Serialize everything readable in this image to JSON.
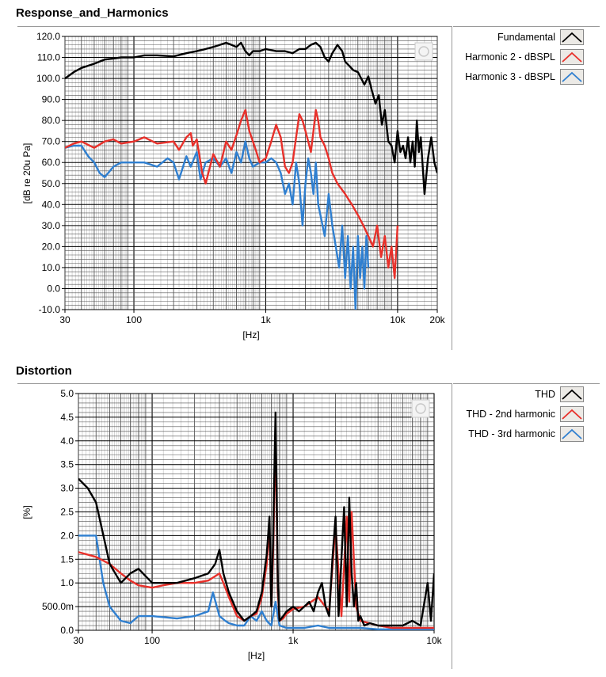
{
  "chart_data": [
    {
      "type": "line",
      "title": "Response_and_Harmonics",
      "xlabel": "[Hz]",
      "ylabel": "[dB re 20u Pa]",
      "xscale": "log",
      "xlim": [
        30,
        20000
      ],
      "ylim": [
        -10,
        120
      ],
      "xticks": [
        {
          "v": 30,
          "label": "30"
        },
        {
          "v": 100,
          "label": "100"
        },
        {
          "v": 1000,
          "label": "1k"
        },
        {
          "v": 10000,
          "label": "10k"
        },
        {
          "v": 20000,
          "label": "20k"
        }
      ],
      "yticks": [
        {
          "v": 120,
          "label": "120.0"
        },
        {
          "v": 110,
          "label": "110.0"
        },
        {
          "v": 100,
          "label": "100.0"
        },
        {
          "v": 90,
          "label": "90.0"
        },
        {
          "v": 80,
          "label": "80.0"
        },
        {
          "v": 70,
          "label": "70.0"
        },
        {
          "v": 60,
          "label": "60.0"
        },
        {
          "v": 50,
          "label": "50.0"
        },
        {
          "v": 40,
          "label": "40.0"
        },
        {
          "v": 30,
          "label": "30.0"
        },
        {
          "v": 20,
          "label": "20.0"
        },
        {
          "v": 10,
          "label": "10.0"
        },
        {
          "v": 0,
          "label": "0.0"
        },
        {
          "v": -10,
          "label": "-10.0"
        }
      ],
      "grid": true,
      "legend_position": "right",
      "series": [
        {
          "name": "Fundamental",
          "color": "#000000",
          "x": [
            30,
            35,
            40,
            50,
            60,
            70,
            80,
            100,
            120,
            150,
            200,
            250,
            300,
            350,
            400,
            450,
            500,
            550,
            600,
            650,
            700,
            750,
            800,
            900,
            1000,
            1200,
            1400,
            1600,
            1800,
            2000,
            2200,
            2400,
            2600,
            2800,
            3000,
            3200,
            3500,
            3800,
            4000,
            4300,
            4600,
            5000,
            5300,
            5600,
            6000,
            6400,
            6800,
            7200,
            7600,
            8000,
            8500,
            9000,
            9500,
            10000,
            10500,
            11000,
            11500,
            12000,
            12500,
            13000,
            13500,
            14000,
            14500,
            15000,
            16000,
            17000,
            18000,
            19000,
            20000
          ],
          "y": [
            100,
            103,
            105,
            107,
            109,
            109.5,
            110,
            110,
            111,
            111,
            110.5,
            112,
            113,
            114,
            115,
            116,
            117,
            116,
            115,
            117,
            113,
            111,
            113,
            113,
            114,
            113,
            113,
            112,
            114,
            114,
            116,
            117,
            115,
            110,
            108,
            112,
            116,
            113,
            108,
            106,
            104,
            103,
            100,
            97,
            101,
            94,
            88,
            92,
            78,
            85,
            70,
            68,
            60,
            75,
            65,
            68,
            62,
            72,
            60,
            70,
            58,
            80,
            65,
            72,
            45,
            62,
            72,
            60,
            55
          ]
        },
        {
          "name": "Harmonic 2 - dBSPL",
          "color": "#e8302a",
          "x": [
            30,
            35,
            40,
            50,
            60,
            70,
            80,
            100,
            120,
            150,
            200,
            220,
            250,
            270,
            280,
            300,
            330,
            350,
            400,
            450,
            500,
            550,
            600,
            650,
            700,
            750,
            800,
            850,
            900,
            1000,
            1100,
            1200,
            1300,
            1400,
            1500,
            1600,
            1700,
            1800,
            1900,
            2000,
            2100,
            2200,
            2300,
            2400,
            2500,
            2600,
            2800,
            3000,
            3200,
            3500,
            4000,
            4500,
            5000,
            5500,
            6000,
            6500,
            7000,
            7500,
            8000,
            8500,
            9000,
            9500,
            10000
          ],
          "y": [
            67,
            69,
            70,
            67,
            70,
            71,
            69,
            70,
            72,
            69,
            70,
            66,
            72,
            74,
            68,
            71,
            55,
            50,
            64,
            58,
            70,
            66,
            73,
            80,
            85,
            75,
            70,
            65,
            60,
            62,
            70,
            78,
            72,
            58,
            55,
            60,
            72,
            83,
            80,
            75,
            70,
            65,
            75,
            85,
            80,
            72,
            68,
            62,
            55,
            50,
            45,
            40,
            35,
            30,
            25,
            20,
            30,
            15,
            25,
            10,
            20,
            5,
            30
          ]
        },
        {
          "name": "Harmonic 3 - dBSPL",
          "color": "#2f7fd0",
          "x": [
            30,
            35,
            40,
            45,
            50,
            55,
            60,
            70,
            80,
            100,
            120,
            150,
            180,
            200,
            220,
            250,
            270,
            300,
            320,
            350,
            400,
            450,
            500,
            550,
            600,
            650,
            700,
            750,
            800,
            900,
            1000,
            1100,
            1200,
            1300,
            1400,
            1500,
            1600,
            1700,
            1800,
            1900,
            2000,
            2100,
            2200,
            2300,
            2400,
            2500,
            2600,
            2800,
            3000,
            3200,
            3400,
            3600,
            3800,
            4000,
            4200,
            4400,
            4600,
            4800,
            5000,
            5200,
            5400,
            5600,
            5800,
            6000
          ],
          "y": [
            67,
            68,
            68,
            63,
            60,
            55,
            53,
            58,
            60,
            60,
            60,
            58,
            62,
            60,
            52,
            63,
            58,
            65,
            52,
            60,
            62,
            58,
            62,
            55,
            65,
            60,
            70,
            62,
            58,
            60,
            60,
            62,
            60,
            55,
            45,
            50,
            40,
            60,
            50,
            30,
            50,
            62,
            55,
            45,
            60,
            40,
            35,
            25,
            45,
            30,
            20,
            10,
            30,
            5,
            25,
            0,
            20,
            -10,
            25,
            5,
            20,
            0,
            25,
            10
          ]
        }
      ]
    },
    {
      "type": "line",
      "title": "Distortion",
      "xlabel": "[Hz]",
      "ylabel": "[%]",
      "xscale": "log",
      "xlim": [
        30,
        10000
      ],
      "ylim": [
        0,
        5
      ],
      "xticks": [
        {
          "v": 30,
          "label": "30"
        },
        {
          "v": 100,
          "label": "100"
        },
        {
          "v": 1000,
          "label": "1k"
        },
        {
          "v": 10000,
          "label": "10k"
        }
      ],
      "yticks": [
        {
          "v": 5,
          "label": "5.0"
        },
        {
          "v": 4.5,
          "label": "4.5"
        },
        {
          "v": 4,
          "label": "4.0"
        },
        {
          "v": 3.5,
          "label": "3.5"
        },
        {
          "v": 3,
          "label": "3.0"
        },
        {
          "v": 2.5,
          "label": "2.5"
        },
        {
          "v": 2,
          "label": "2.0"
        },
        {
          "v": 1.5,
          "label": "1.5"
        },
        {
          "v": 1,
          "label": "1.0"
        },
        {
          "v": 0.5,
          "label": "500.0m"
        },
        {
          "v": 0,
          "label": "0.0"
        }
      ],
      "grid": true,
      "legend_position": "right",
      "series": [
        {
          "name": "THD",
          "color": "#000000",
          "x": [
            30,
            35,
            40,
            50,
            60,
            70,
            80,
            100,
            120,
            150,
            200,
            250,
            280,
            300,
            320,
            350,
            400,
            450,
            500,
            550,
            600,
            650,
            680,
            700,
            720,
            750,
            780,
            800,
            850,
            900,
            1000,
            1100,
            1200,
            1300,
            1400,
            1500,
            1600,
            1700,
            1800,
            1900,
            2000,
            2100,
            2200,
            2300,
            2400,
            2500,
            2600,
            2700,
            2800,
            2900,
            3000,
            3200,
            3500,
            4000,
            5000,
            6000,
            7000,
            8000,
            9000,
            9500,
            10000
          ],
          "y": [
            3.2,
            3.0,
            2.7,
            1.4,
            1.0,
            1.2,
            1.3,
            1.0,
            1.0,
            1.0,
            1.1,
            1.2,
            1.4,
            1.7,
            1.2,
            0.8,
            0.4,
            0.2,
            0.3,
            0.4,
            0.8,
            1.6,
            2.4,
            0.5,
            1.8,
            4.6,
            1.0,
            0.2,
            0.3,
            0.4,
            0.5,
            0.4,
            0.5,
            0.6,
            0.4,
            0.8,
            1.0,
            0.5,
            0.3,
            1.5,
            2.4,
            0.3,
            1.5,
            2.6,
            0.5,
            2.8,
            1.2,
            0.5,
            1.0,
            0.2,
            0.3,
            0.1,
            0.15,
            0.1,
            0.1,
            0.1,
            0.2,
            0.1,
            1.0,
            0.2,
            1.2
          ]
        },
        {
          "name": "THD - 2nd harmonic",
          "color": "#e8302a",
          "x": [
            30,
            40,
            50,
            60,
            70,
            80,
            100,
            120,
            150,
            200,
            250,
            300,
            320,
            350,
            400,
            450,
            500,
            550,
            600,
            650,
            680,
            700,
            720,
            750,
            780,
            800,
            850,
            900,
            1000,
            1200,
            1500,
            1800,
            2000,
            2200,
            2400,
            2500,
            2600,
            2800,
            3000,
            4000,
            5000,
            7000,
            10000
          ],
          "y": [
            1.65,
            1.55,
            1.4,
            1.2,
            1.05,
            0.95,
            0.9,
            0.95,
            1.0,
            1.0,
            1.05,
            1.2,
            1.0,
            0.7,
            0.3,
            0.2,
            0.3,
            0.35,
            0.7,
            1.4,
            2.2,
            0.5,
            1.5,
            4.2,
            0.8,
            0.2,
            0.25,
            0.35,
            0.45,
            0.5,
            0.7,
            0.4,
            2.2,
            0.3,
            2.4,
            0.6,
            2.5,
            0.5,
            0.2,
            0.1,
            0.05,
            0.05,
            0.05
          ]
        },
        {
          "name": "THD - 3rd harmonic",
          "color": "#2f7fd0",
          "x": [
            30,
            35,
            40,
            45,
            50,
            60,
            70,
            80,
            100,
            150,
            200,
            250,
            270,
            300,
            330,
            350,
            400,
            450,
            500,
            550,
            600,
            650,
            700,
            750,
            800,
            900,
            1000,
            1200,
            1500,
            1800,
            2000,
            2500,
            3000,
            4000,
            6000,
            10000
          ],
          "y": [
            2.0,
            2.0,
            2.0,
            1.0,
            0.5,
            0.2,
            0.15,
            0.3,
            0.3,
            0.25,
            0.3,
            0.4,
            0.8,
            0.3,
            0.2,
            0.15,
            0.1,
            0.1,
            0.3,
            0.2,
            0.4,
            0.2,
            0.1,
            0.6,
            0.1,
            0.05,
            0.05,
            0.05,
            0.1,
            0.05,
            0.05,
            0.05,
            0.05,
            0.02,
            0.02,
            0.02
          ]
        }
      ]
    }
  ]
}
